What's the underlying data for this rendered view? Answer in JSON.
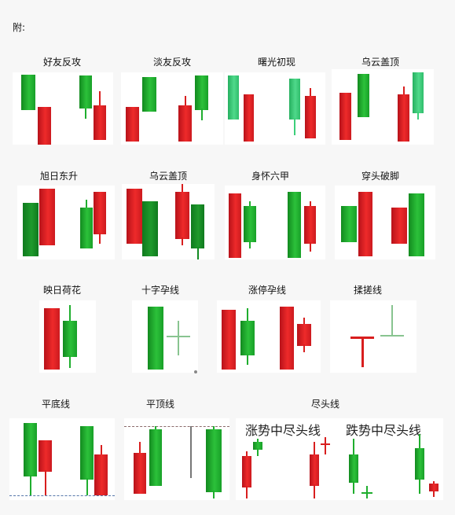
{
  "header": "附:",
  "row1": [
    "好友反攻",
    "淡友反攻",
    "曙光初现",
    "乌云盖顶"
  ],
  "row2": [
    "旭日东升",
    "乌云盖顶",
    "身怀六甲",
    "穿头破脚"
  ],
  "row3": [
    "映日荷花",
    "十字孕线",
    "涨停孕线",
    "揉搓线"
  ],
  "row4": [
    "平底线",
    "平顶线",
    "尽头线"
  ],
  "end_panel": {
    "up_caption": "涨势中尽头线",
    "down_caption": "跌势中尽头线"
  },
  "colors": {
    "bull": "#1fae2e",
    "bear": "#d81e1e"
  }
}
